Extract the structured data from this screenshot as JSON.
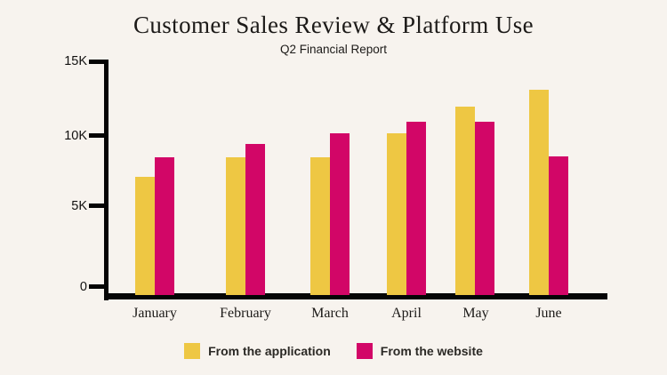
{
  "page": {
    "background_color": "#F7F3EE"
  },
  "chart_data": {
    "type": "bar",
    "title": "Customer Sales Review & Platform Use",
    "subtitle": "Q2 Financial Report",
    "categories": [
      "January",
      "February",
      "March",
      "April",
      "May",
      "June"
    ],
    "series": [
      {
        "name": "From the application",
        "color": "#EEC743",
        "values": [
          7300,
          8600,
          8600,
          10200,
          12000,
          13100
        ]
      },
      {
        "name": "From the website",
        "color": "#D20667",
        "values": [
          8600,
          9500,
          10200,
          11000,
          11000,
          8700
        ]
      }
    ],
    "y_ticks": [
      "15K",
      "10K",
      "5K",
      "0"
    ],
    "y_tick_values": [
      15000,
      10000,
      5000,
      0
    ],
    "ylim": [
      0,
      15000
    ],
    "grid": false,
    "legend_position": "bottom",
    "axis_color": "#050505"
  }
}
